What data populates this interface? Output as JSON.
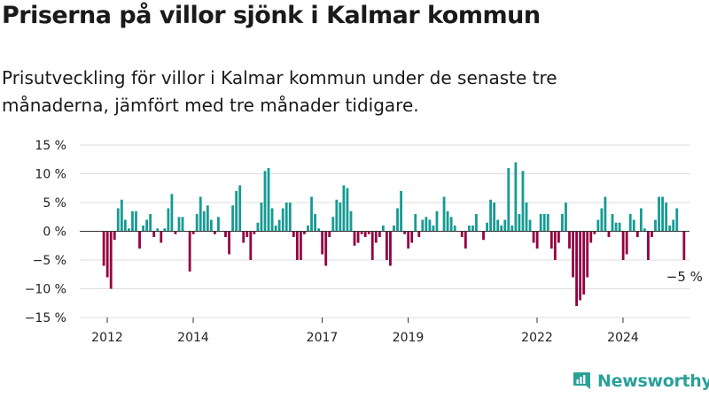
{
  "chart_data": {
    "type": "bar",
    "title": "Priserna på villor sjönk i Kalmar kommun",
    "subtitle": "Prisutveckling för villor i Kalmar kommun under de senaste tre månaderna, jämfört med tre månader tidigare.",
    "xlabel": "",
    "ylabel": "",
    "ylim": [
      -15,
      15
    ],
    "y_ticks": [
      {
        "value": 15,
        "label": "15 %"
      },
      {
        "value": 10,
        "label": "10 %"
      },
      {
        "value": 5,
        "label": "5 %"
      },
      {
        "value": 0,
        "label": "0 %"
      },
      {
        "value": -5,
        "label": "−5 %"
      },
      {
        "value": -10,
        "label": "−10 %"
      },
      {
        "value": -15,
        "label": "−15 %"
      }
    ],
    "x_ticks": [
      {
        "value": 2012,
        "label": "2012"
      },
      {
        "value": 2014,
        "label": "2014"
      },
      {
        "value": 2017,
        "label": "2017"
      },
      {
        "value": 2019,
        "label": "2019"
      },
      {
        "value": 2022,
        "label": "2022"
      },
      {
        "value": 2024,
        "label": "2024"
      }
    ],
    "x_start": 2011.92,
    "x_step": 0.08333,
    "values": [
      -6,
      -8,
      -10,
      -1.5,
      4,
      5.5,
      2,
      0.5,
      3.5,
      3.5,
      -3,
      1,
      2,
      3,
      -1,
      0.5,
      -2,
      0.5,
      4,
      6.5,
      -0.5,
      2.5,
      2.5,
      0,
      -7,
      -0.5,
      3,
      6,
      3.5,
      4.5,
      2,
      -0.5,
      2.5,
      0,
      -1,
      -4,
      4.5,
      7,
      8,
      -2,
      -1,
      -5,
      -0.5,
      1.5,
      5,
      10.5,
      11,
      4,
      1,
      2,
      4,
      5,
      5,
      -1,
      -5,
      -5,
      -0.5,
      1,
      6,
      3,
      0.5,
      -4,
      -6,
      -1,
      2.5,
      5.5,
      5,
      8,
      7.5,
      3.5,
      -2.5,
      -2,
      -0.5,
      -1,
      -0.5,
      -5,
      -2,
      -1,
      1,
      -5,
      -6,
      1,
      4,
      7,
      -0.5,
      -3,
      -2,
      3,
      -1,
      2,
      2.5,
      2,
      1,
      3.5,
      0,
      6,
      3.5,
      2.5,
      1,
      0,
      -1,
      -3,
      1,
      1,
      3,
      0,
      -1.5,
      1.5,
      5.5,
      5,
      2,
      1,
      2,
      11,
      1,
      12,
      3,
      10.5,
      5,
      2,
      -2,
      -3,
      3,
      3,
      3,
      -3,
      -5,
      -2,
      3,
      5,
      -3,
      -8,
      -13,
      -12,
      -11,
      -8,
      -2,
      -0.5,
      2,
      4,
      6,
      -1,
      3,
      1.5,
      1.5,
      -5,
      -4,
      3,
      2,
      -1,
      4,
      0.5,
      -5,
      -1,
      2,
      6,
      6,
      5,
      1,
      2,
      4,
      0,
      -5
    ],
    "positive_color": "#169b93",
    "negative_color": "#930041",
    "annotation": "−5 %",
    "source_logo": "Newsworthy"
  }
}
